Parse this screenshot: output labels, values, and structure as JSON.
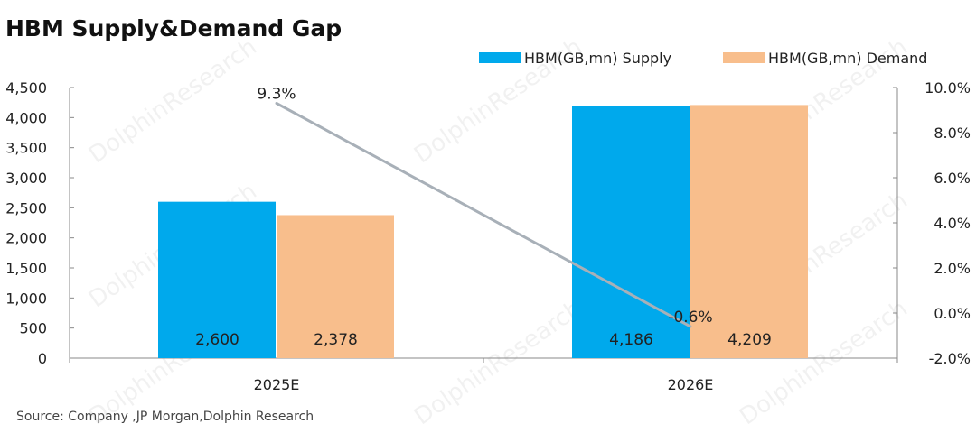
{
  "chart_data": {
    "type": "bar",
    "title": "HBM Supply&Demand Gap",
    "categories": [
      "2025E",
      "2026E"
    ],
    "series": [
      {
        "name": "HBM(GB,mn) Supply",
        "values": [
          2600,
          4186
        ],
        "color": "#00A9EC",
        "axis": "left",
        "type": "bar"
      },
      {
        "name": "HBM(GB,mn) Demand",
        "values": [
          2378,
          4209
        ],
        "color": "#F8BE8C",
        "axis": "left",
        "type": "bar"
      },
      {
        "values": [
          9.3,
          -0.6
        ],
        "color": "#A8B0B8",
        "axis": "right",
        "type": "line",
        "labels": [
          "9.3%",
          "-0.6%"
        ]
      }
    ],
    "data_labels": [
      [
        "2,600",
        "4,186"
      ],
      [
        "2,378",
        "4,209"
      ]
    ],
    "ylim_left": [
      0,
      4500
    ],
    "yticks_left": [
      "0",
      "500",
      "1,000",
      "1,500",
      "2,000",
      "2,500",
      "3,000",
      "3,500",
      "4,000",
      "4,500"
    ],
    "ylim_right": [
      -2,
      10
    ],
    "yticks_right": [
      "-2.0%",
      "0.0%",
      "2.0%",
      "4.0%",
      "6.0%",
      "8.0%",
      "10.0%"
    ],
    "grid": false,
    "legend_position": "top-right",
    "source": "Source:  Company ,JP Morgan,Dolphin Research"
  },
  "watermark": "DolphinResearch"
}
